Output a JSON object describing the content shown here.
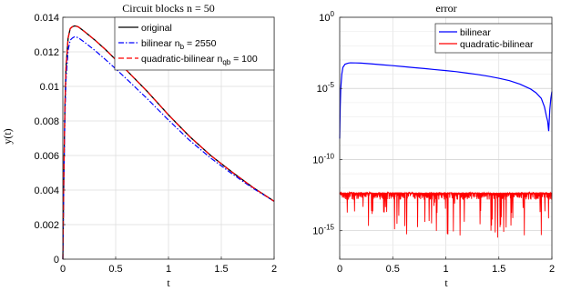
{
  "chart_data": [
    {
      "type": "line",
      "title": "Circuit blocks n = 50",
      "xlabel": "t",
      "ylabel": "y(t)",
      "xlim": [
        0,
        2
      ],
      "ylim": [
        0,
        0.014
      ],
      "xticks": [
        0,
        0.5,
        1,
        1.5,
        2
      ],
      "xtick_labels": [
        "0",
        "0.5",
        "1",
        "1.5",
        "2"
      ],
      "yticks": [
        0,
        0.002,
        0.004,
        0.006,
        0.008,
        0.01,
        0.012,
        0.014
      ],
      "ytick_labels": [
        "0",
        "0.002",
        "0.004",
        "0.006",
        "0.008",
        "0.01",
        "0.012",
        "0.014"
      ],
      "grid": true,
      "legend_position": "top-right",
      "series": [
        {
          "name": "original",
          "color": "#000000",
          "dash": "solid",
          "x": [
            0,
            0.01,
            0.02,
            0.03,
            0.05,
            0.07,
            0.09,
            0.11,
            0.13,
            0.15,
            0.2,
            0.3,
            0.4,
            0.5,
            0.6,
            0.8,
            1.0,
            1.2,
            1.4,
            1.6,
            1.8,
            2.0
          ],
          "y": [
            0,
            0.0052,
            0.0089,
            0.0111,
            0.0128,
            0.01335,
            0.01345,
            0.0135,
            0.01348,
            0.01343,
            0.0132,
            0.0127,
            0.01215,
            0.01155,
            0.01095,
            0.0097,
            0.00835,
            0.0071,
            0.006,
            0.00505,
            0.00415,
            0.00335
          ]
        },
        {
          "name": "bilinear",
          "label_prefix": "bilinear n",
          "label_sub": "b",
          "label_suffix": " = 2550",
          "color": "#0000ff",
          "dash": "dashdot",
          "x": [
            0,
            0.01,
            0.02,
            0.03,
            0.05,
            0.07,
            0.09,
            0.11,
            0.13,
            0.15,
            0.2,
            0.3,
            0.4,
            0.5,
            0.6,
            0.8,
            1.0,
            1.2,
            1.4,
            1.6,
            1.8,
            2.0
          ],
          "y": [
            0,
            0.0048,
            0.0083,
            0.0104,
            0.0121,
            0.01268,
            0.0128,
            0.01287,
            0.01285,
            0.0128,
            0.01258,
            0.0121,
            0.01157,
            0.01102,
            0.01045,
            0.00928,
            0.00805,
            0.00688,
            0.00585,
            0.00495,
            0.0041,
            0.00335
          ]
        },
        {
          "name": "quadratic-bilinear",
          "label_prefix": "quadratic-bilinear n",
          "label_sub": "qb",
          "label_suffix": " = 100",
          "color": "#ff0000",
          "dash": "dashed",
          "x": [
            0,
            0.01,
            0.02,
            0.03,
            0.05,
            0.07,
            0.09,
            0.11,
            0.13,
            0.15,
            0.2,
            0.3,
            0.4,
            0.5,
            0.6,
            0.8,
            1.0,
            1.2,
            1.4,
            1.6,
            1.8,
            2.0
          ],
          "y": [
            0,
            0.0052,
            0.0089,
            0.0111,
            0.0128,
            0.01335,
            0.01345,
            0.0135,
            0.01348,
            0.01343,
            0.0132,
            0.0127,
            0.01215,
            0.01155,
            0.01095,
            0.0097,
            0.00835,
            0.0071,
            0.006,
            0.00505,
            0.00415,
            0.00335
          ]
        }
      ]
    },
    {
      "type": "line",
      "title": "error",
      "xlabel": "t",
      "ylabel": "",
      "xlim": [
        0,
        2
      ],
      "ylim": [
        1e-17,
        1
      ],
      "yscale": "log",
      "xticks": [
        0,
        0.5,
        1,
        1.5,
        2
      ],
      "xtick_labels": [
        "0",
        "0.5",
        "1",
        "1.5",
        "2"
      ],
      "yticks": [
        {
          "value": 1,
          "base": "10",
          "exp": "0"
        },
        {
          "value": 1e-05,
          "base": "10",
          "exp": "-5"
        },
        {
          "value": 1e-10,
          "base": "10",
          "exp": "-10"
        },
        {
          "value": 1e-15,
          "base": "10",
          "exp": "-15"
        }
      ],
      "grid": true,
      "legend_position": "top-right",
      "series": [
        {
          "name": "bilinear",
          "color": "#0000ff",
          "x": [
            0,
            0.005,
            0.01,
            0.02,
            0.03,
            0.05,
            0.08,
            0.1,
            0.15,
            0.2,
            0.3,
            0.4,
            0.5,
            0.6,
            0.7,
            0.8,
            0.9,
            1.0,
            1.1,
            1.2,
            1.3,
            1.4,
            1.5,
            1.6,
            1.7,
            1.8,
            1.85,
            1.9,
            1.93,
            1.95,
            1.96,
            1.97,
            1.98,
            1.99,
            2.0
          ],
          "y": [
            3e-09,
            5e-07,
            1e-05,
            0.0001,
            0.0003,
            0.0005,
            0.0006,
            0.00063,
            0.00062,
            0.0006,
            0.00053,
            0.00046,
            0.0004,
            0.00034,
            0.00029,
            0.00025,
            0.00021,
            0.00018,
            0.00015,
            0.00012,
            9.5e-05,
            7.2e-05,
            5.2e-05,
            3.5e-05,
            2e-05,
            9e-06,
            5e-06,
            2e-06,
            5e-07,
            1e-07,
            5e-08,
            1e-08,
            3e-07,
            2e-06,
            6e-06
          ]
        },
        {
          "name": "quadratic-bilinear",
          "color": "#ff0000",
          "noise": true,
          "x_range": [
            0.0,
            2.0
          ],
          "band_upper": 5e-13,
          "band_lower": 1e-13,
          "spike_min": 3e-16
        }
      ]
    }
  ]
}
